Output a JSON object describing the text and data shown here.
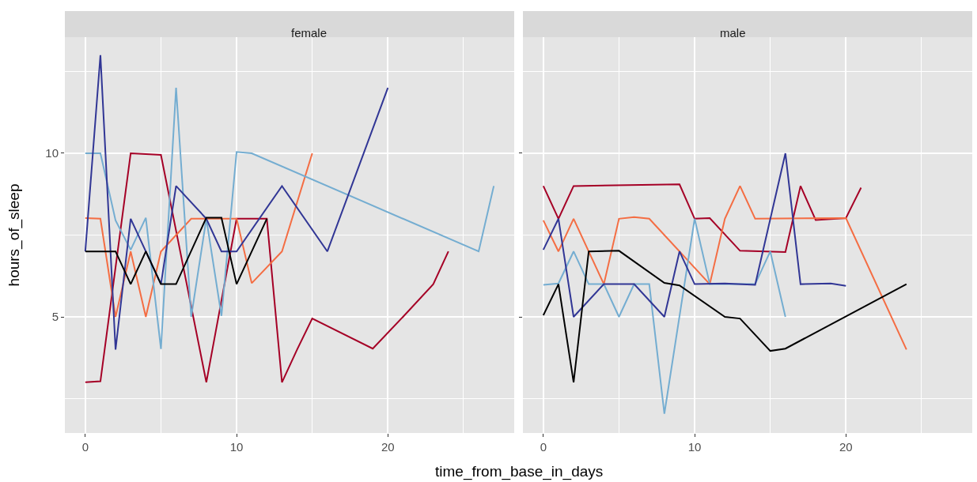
{
  "chart_data": [
    {
      "type": "line",
      "title": "female",
      "xlabel": "time_from_base_in_days",
      "ylabel": "hours_of_sleep",
      "xlim": [
        -1.35,
        28.35
      ],
      "xticks": [
        0,
        10,
        20
      ],
      "ylim": [
        1.45,
        13.55
      ],
      "yticks": [
        5,
        10
      ],
      "grid": true,
      "series": [
        {
          "color": "#a50026",
          "x": [
            0,
            1,
            3,
            5,
            8,
            10,
            12,
            13,
            14,
            15,
            19,
            21,
            23,
            24
          ],
          "values": [
            3,
            3.03,
            10,
            9.95,
            3,
            8,
            8,
            3,
            4,
            4.95,
            4.03,
            5,
            6,
            7
          ]
        },
        {
          "color": "#f46d43",
          "x": [
            0,
            1,
            2,
            3,
            4,
            5,
            7,
            8,
            9,
            10,
            11,
            13,
            15
          ],
          "values": [
            8.02,
            8,
            5,
            7,
            5,
            7,
            8,
            8,
            8,
            8,
            6.03,
            7,
            10
          ]
        },
        {
          "color": "#74add1",
          "x": [
            0,
            1,
            2,
            3,
            4,
            5,
            6,
            7,
            8,
            9,
            10,
            11,
            26,
            27
          ],
          "values": [
            10,
            10,
            7.95,
            7.05,
            8.03,
            4.02,
            12,
            5,
            8,
            5.03,
            10.04,
            10,
            7,
            9
          ]
        },
        {
          "color": "#313695",
          "x": [
            0,
            1,
            2,
            3,
            4,
            5,
            6,
            8,
            9,
            10,
            13,
            16,
            20
          ],
          "values": [
            7,
            13,
            4,
            8,
            7,
            6,
            9,
            8,
            7,
            7,
            9,
            7,
            12
          ]
        },
        {
          "color": "#000000",
          "x": [
            0,
            2,
            3,
            4,
            5,
            6,
            8,
            9,
            10,
            12
          ],
          "values": [
            7,
            7,
            6,
            7,
            6,
            6,
            8.03,
            8.03,
            6,
            8
          ]
        }
      ]
    },
    {
      "type": "line",
      "title": "male",
      "xlim": [
        -1.35,
        28.35
      ],
      "xticks": [
        0,
        10,
        20
      ],
      "ylim": [
        1.45,
        13.55
      ],
      "yticks": [
        5,
        10
      ],
      "grid": true,
      "tick_labels": "x",
      "series": [
        {
          "color": "#a50026",
          "x": [
            0,
            1,
            2,
            9,
            10,
            11,
            13,
            16,
            17,
            18,
            20,
            21
          ],
          "values": [
            9,
            8,
            9,
            9.05,
            8,
            8.02,
            7.02,
            6.98,
            9,
            7.96,
            8.02,
            8.95
          ]
        },
        {
          "color": "#f46d43",
          "x": [
            0,
            1,
            2,
            4,
            5,
            6,
            7,
            11,
            12,
            13,
            14,
            20,
            24
          ],
          "values": [
            7.95,
            7,
            8,
            6,
            8,
            8.05,
            8,
            6,
            8,
            9,
            8,
            8.02,
            4
          ]
        },
        {
          "color": "#74add1",
          "x": [
            0,
            1,
            2,
            3,
            4,
            5,
            6,
            7,
            8,
            10,
            11,
            14,
            15,
            16
          ],
          "values": [
            5.98,
            6.02,
            7,
            6,
            6,
            5,
            6,
            6,
            2.04,
            8,
            6,
            6,
            7,
            5
          ]
        },
        {
          "color": "#313695",
          "x": [
            0,
            1,
            2,
            4,
            6,
            8,
            9,
            10,
            12,
            14,
            16,
            17,
            19,
            20
          ],
          "values": [
            7.05,
            8,
            5,
            6,
            6,
            5,
            7,
            6,
            6.02,
            5.98,
            10,
            6,
            6.02,
            5.95
          ]
        },
        {
          "color": "#000000",
          "x": [
            0,
            1,
            2,
            3,
            5,
            8,
            9,
            12,
            13,
            15,
            16,
            24
          ],
          "values": [
            5.05,
            6,
            3,
            7,
            7.02,
            6.04,
            5.96,
            5,
            4.95,
            3.96,
            4.03,
            6
          ]
        }
      ]
    }
  ]
}
